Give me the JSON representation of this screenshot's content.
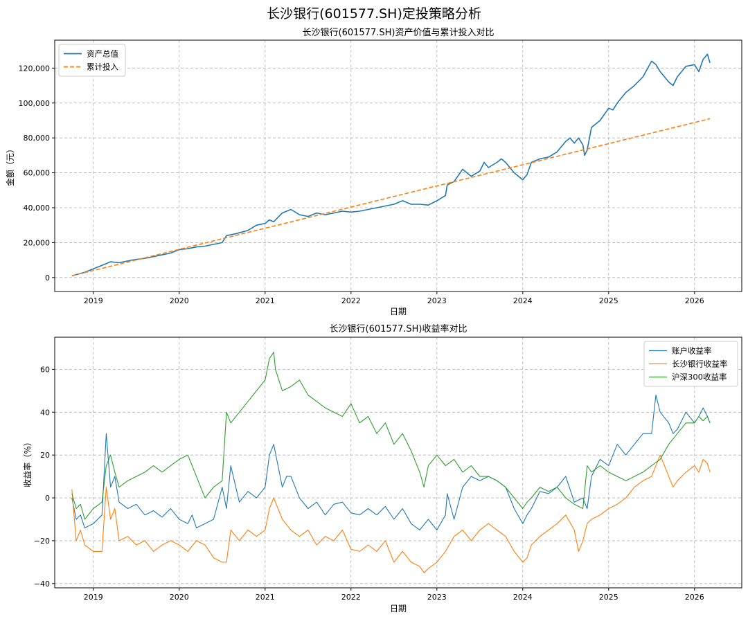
{
  "figure_title": "长沙银行(601577.SH)定投策略分析",
  "colors": {
    "blue": "#1f77b4",
    "orange": "#ff7f0e",
    "green": "#2ca02c"
  },
  "chart_data": [
    {
      "type": "line",
      "title": "长沙银行(601577.SH)资产价值与累计投入对比",
      "xlabel": "日期",
      "ylabel": "金额（元）",
      "xlim": [
        2018.55,
        2026.55
      ],
      "ylim": [
        -8000,
        136000
      ],
      "x_ticks": [
        2019,
        2020,
        2021,
        2022,
        2023,
        2024,
        2025,
        2026
      ],
      "x_tick_labels": [
        "2019",
        "2020",
        "2021",
        "2022",
        "2023",
        "2024",
        "2025",
        "2026"
      ],
      "y_ticks": [
        0,
        20000,
        40000,
        60000,
        80000,
        100000,
        120000
      ],
      "y_tick_labels": [
        "0",
        "20,000",
        "40,000",
        "60,000",
        "80,000",
        "100,000",
        "120,000"
      ],
      "legend_position": "top-left",
      "grid": true,
      "series": [
        {
          "name": "资产总值",
          "color": "#1f77b4",
          "style": "solid",
          "x": [
            2018.75,
            2018.9,
            2019.0,
            2019.15,
            2019.2,
            2019.3,
            2019.45,
            2019.6,
            2019.75,
            2019.9,
            2020.0,
            2020.1,
            2020.2,
            2020.3,
            2020.4,
            2020.5,
            2020.55,
            2020.65,
            2020.8,
            2020.9,
            2021.0,
            2021.05,
            2021.1,
            2021.2,
            2021.3,
            2021.4,
            2021.5,
            2021.6,
            2021.7,
            2021.8,
            2021.9,
            2022.0,
            2022.1,
            2022.2,
            2022.3,
            2022.4,
            2022.5,
            2022.6,
            2022.7,
            2022.8,
            2022.9,
            2023.0,
            2023.1,
            2023.12,
            2023.2,
            2023.3,
            2023.35,
            2023.4,
            2023.5,
            2023.55,
            2023.6,
            2023.7,
            2023.75,
            2023.8,
            2023.9,
            2023.95,
            2024.0,
            2024.05,
            2024.1,
            2024.2,
            2024.3,
            2024.4,
            2024.5,
            2024.55,
            2024.6,
            2024.65,
            2024.7,
            2024.72,
            2024.75,
            2024.8,
            2024.9,
            2025.0,
            2025.05,
            2025.1,
            2025.2,
            2025.3,
            2025.4,
            2025.5,
            2025.55,
            2025.6,
            2025.7,
            2025.75,
            2025.8,
            2025.9,
            2026.0,
            2026.05,
            2026.1,
            2026.15,
            2026.18
          ],
          "values": [
            1000,
            3000,
            5000,
            8000,
            9000,
            8500,
            10000,
            11000,
            12500,
            14000,
            16000,
            16500,
            17500,
            18000,
            19000,
            20000,
            24000,
            25000,
            27000,
            30000,
            31000,
            33000,
            32000,
            37000,
            39000,
            36000,
            35000,
            37000,
            36000,
            37000,
            38000,
            37500,
            38000,
            39000,
            40000,
            41000,
            42000,
            44000,
            42000,
            42000,
            41500,
            44000,
            47000,
            53000,
            55000,
            62000,
            60000,
            58000,
            61000,
            66000,
            63000,
            66000,
            68000,
            66000,
            60000,
            58000,
            56000,
            59000,
            66000,
            68000,
            69000,
            72000,
            78000,
            80000,
            77000,
            80000,
            76000,
            70000,
            73000,
            86000,
            90000,
            97000,
            96000,
            100000,
            106000,
            110000,
            115000,
            124000,
            122000,
            118000,
            112000,
            110000,
            115000,
            121000,
            122000,
            118000,
            125000,
            128000,
            123000
          ]
        },
        {
          "name": "累计投入",
          "color": "#ff7f0e",
          "style": "dashed",
          "x": [
            2018.75,
            2026.18
          ],
          "values": [
            1000,
            91000
          ]
        }
      ]
    },
    {
      "type": "line",
      "title": "长沙银行(601577.SH)收益率对比",
      "xlabel": "日期",
      "ylabel": "收益率（%）",
      "xlim": [
        2018.55,
        2026.55
      ],
      "ylim": [
        -42,
        75
      ],
      "x_ticks": [
        2019,
        2020,
        2021,
        2022,
        2023,
        2024,
        2025,
        2026
      ],
      "x_tick_labels": [
        "2019",
        "2020",
        "2021",
        "2022",
        "2023",
        "2024",
        "2025",
        "2026"
      ],
      "y_ticks": [
        -40,
        -20,
        0,
        20,
        40,
        60
      ],
      "y_tick_labels": [
        "−40",
        "−20",
        "0",
        "20",
        "40",
        "60"
      ],
      "legend_position": "top-right",
      "grid": true,
      "series": [
        {
          "name": "账户收益率",
          "color": "#1f77b4",
          "x": [
            2018.75,
            2018.8,
            2018.85,
            2018.9,
            2019.0,
            2019.1,
            2019.15,
            2019.2,
            2019.25,
            2019.3,
            2019.4,
            2019.5,
            2019.6,
            2019.7,
            2019.8,
            2019.9,
            2020.0,
            2020.1,
            2020.15,
            2020.2,
            2020.3,
            2020.4,
            2020.5,
            2020.55,
            2020.6,
            2020.7,
            2020.8,
            2020.9,
            2021.0,
            2021.05,
            2021.1,
            2021.2,
            2021.25,
            2021.3,
            2021.4,
            2021.5,
            2021.6,
            2021.7,
            2021.8,
            2021.9,
            2022.0,
            2022.1,
            2022.2,
            2022.3,
            2022.4,
            2022.5,
            2022.6,
            2022.7,
            2022.8,
            2022.9,
            2023.0,
            2023.1,
            2023.12,
            2023.2,
            2023.3,
            2023.4,
            2023.5,
            2023.6,
            2023.7,
            2023.8,
            2023.9,
            2024.0,
            2024.05,
            2024.1,
            2024.2,
            2024.3,
            2024.4,
            2024.5,
            2024.6,
            2024.7,
            2024.75,
            2024.8,
            2024.9,
            2025.0,
            2025.1,
            2025.2,
            2025.3,
            2025.4,
            2025.5,
            2025.55,
            2025.6,
            2025.7,
            2025.75,
            2025.8,
            2025.9,
            2026.0,
            2026.05,
            2026.1,
            2026.15,
            2026.18
          ],
          "values": [
            0,
            -10,
            -8,
            -14,
            -12,
            -8,
            30,
            5,
            10,
            -2,
            -5,
            -3,
            -8,
            -6,
            -9,
            -5,
            -10,
            -12,
            -8,
            -14,
            -12,
            -10,
            5,
            -5,
            15,
            -2,
            3,
            0,
            5,
            20,
            25,
            5,
            10,
            10,
            0,
            -5,
            -2,
            -8,
            -3,
            -2,
            -7,
            -8,
            -5,
            -8,
            -4,
            -10,
            -5,
            -12,
            -15,
            -10,
            -15,
            -8,
            2,
            -10,
            5,
            10,
            8,
            10,
            8,
            5,
            -5,
            -12,
            -8,
            -5,
            3,
            2,
            5,
            10,
            -2,
            0,
            -5,
            10,
            18,
            15,
            25,
            20,
            25,
            30,
            30,
            48,
            40,
            35,
            30,
            32,
            40,
            35,
            38,
            42,
            38,
            35
          ]
        },
        {
          "name": "长沙银行收益率",
          "color": "#ff7f0e",
          "x": [
            2018.75,
            2018.8,
            2018.85,
            2018.9,
            2019.0,
            2019.1,
            2019.15,
            2019.2,
            2019.25,
            2019.3,
            2019.4,
            2019.5,
            2019.6,
            2019.7,
            2019.8,
            2019.9,
            2020.0,
            2020.1,
            2020.2,
            2020.3,
            2020.4,
            2020.5,
            2020.55,
            2020.6,
            2020.7,
            2020.8,
            2020.9,
            2021.0,
            2021.05,
            2021.1,
            2021.2,
            2021.3,
            2021.4,
            2021.5,
            2021.6,
            2021.7,
            2021.8,
            2021.9,
            2022.0,
            2022.1,
            2022.2,
            2022.3,
            2022.4,
            2022.5,
            2022.6,
            2022.7,
            2022.8,
            2022.85,
            2022.9,
            2023.0,
            2023.1,
            2023.2,
            2023.3,
            2023.4,
            2023.5,
            2023.6,
            2023.7,
            2023.8,
            2023.9,
            2024.0,
            2024.05,
            2024.1,
            2024.2,
            2024.3,
            2024.4,
            2024.5,
            2024.6,
            2024.65,
            2024.7,
            2024.75,
            2024.8,
            2024.9,
            2025.0,
            2025.1,
            2025.2,
            2025.3,
            2025.4,
            2025.5,
            2025.55,
            2025.6,
            2025.7,
            2025.75,
            2025.8,
            2025.9,
            2026.0,
            2026.05,
            2026.1,
            2026.15,
            2026.18
          ],
          "values": [
            4,
            -20,
            -15,
            -22,
            -25,
            -25,
            5,
            -10,
            -5,
            -20,
            -18,
            -22,
            -20,
            -25,
            -22,
            -20,
            -22,
            -25,
            -20,
            -22,
            -28,
            -30,
            -30,
            -15,
            -20,
            -15,
            -18,
            -15,
            -5,
            0,
            -10,
            -15,
            -18,
            -15,
            -22,
            -18,
            -20,
            -15,
            -24,
            -25,
            -22,
            -25,
            -20,
            -30,
            -25,
            -30,
            -32,
            -35,
            -33,
            -30,
            -25,
            -18,
            -15,
            -20,
            -15,
            -12,
            -15,
            -18,
            -25,
            -30,
            -28,
            -22,
            -18,
            -15,
            -12,
            -8,
            -15,
            -25,
            -20,
            -12,
            -10,
            -8,
            -5,
            -3,
            0,
            5,
            8,
            10,
            15,
            20,
            10,
            5,
            8,
            12,
            15,
            12,
            18,
            16,
            12
          ]
        },
        {
          "name": "沪深300收益率",
          "color": "#2ca02c",
          "x": [
            2018.75,
            2018.8,
            2018.85,
            2018.9,
            2019.0,
            2019.1,
            2019.15,
            2019.2,
            2019.25,
            2019.3,
            2019.4,
            2019.5,
            2019.6,
            2019.7,
            2019.8,
            2019.9,
            2020.0,
            2020.1,
            2020.2,
            2020.25,
            2020.3,
            2020.4,
            2020.5,
            2020.55,
            2020.6,
            2020.7,
            2020.8,
            2020.9,
            2021.0,
            2021.05,
            2021.1,
            2021.12,
            2021.2,
            2021.3,
            2021.4,
            2021.5,
            2021.6,
            2021.7,
            2021.8,
            2021.9,
            2022.0,
            2022.1,
            2022.2,
            2022.3,
            2022.4,
            2022.5,
            2022.6,
            2022.7,
            2022.8,
            2022.85,
            2022.9,
            2023.0,
            2023.1,
            2023.2,
            2023.3,
            2023.4,
            2023.5,
            2023.6,
            2023.7,
            2023.8,
            2023.9,
            2024.0,
            2024.05,
            2024.1,
            2024.2,
            2024.3,
            2024.4,
            2024.5,
            2024.6,
            2024.7,
            2024.75,
            2024.8,
            2024.9,
            2025.0,
            2025.1,
            2025.2,
            2025.3,
            2025.4,
            2025.5,
            2025.6,
            2025.7,
            2025.8,
            2025.9,
            2026.0,
            2026.05,
            2026.1,
            2026.15,
            2026.18
          ],
          "values": [
            2,
            -5,
            -3,
            -10,
            -5,
            -2,
            15,
            20,
            12,
            5,
            8,
            10,
            12,
            15,
            12,
            15,
            18,
            20,
            10,
            5,
            0,
            5,
            8,
            40,
            35,
            40,
            45,
            50,
            55,
            65,
            68,
            60,
            50,
            52,
            55,
            48,
            45,
            42,
            40,
            38,
            44,
            35,
            38,
            30,
            35,
            25,
            30,
            22,
            12,
            5,
            15,
            20,
            15,
            18,
            12,
            15,
            10,
            10,
            8,
            5,
            0,
            -5,
            -2,
            0,
            5,
            3,
            5,
            0,
            -3,
            -5,
            15,
            12,
            15,
            12,
            10,
            8,
            10,
            12,
            15,
            18,
            25,
            30,
            35,
            35,
            38,
            36,
            38,
            35
          ]
        }
      ]
    }
  ]
}
